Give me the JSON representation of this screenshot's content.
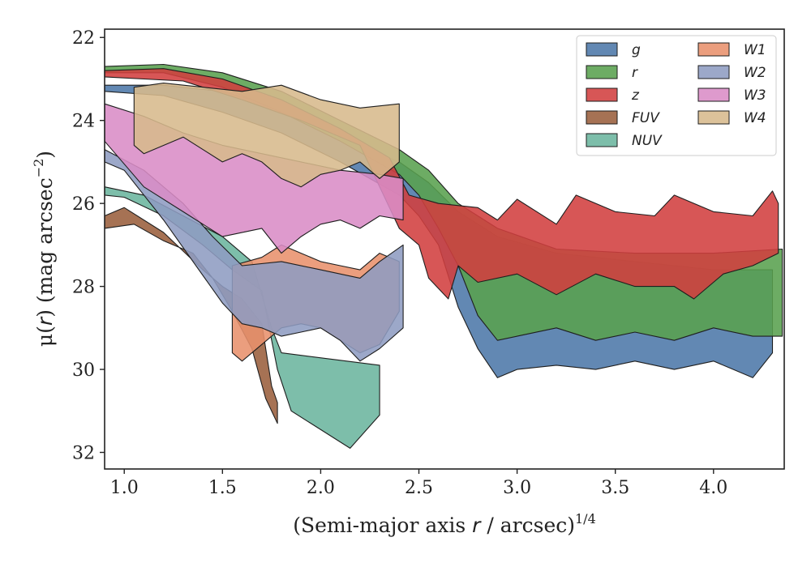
{
  "chart_data": {
    "type": "area",
    "xlabel": {
      "pre": "(Semi-major axis ",
      "var": "r",
      "post": " / arcsec)",
      "sup": "1/4"
    },
    "ylabel": {
      "pre": "μ(",
      "var": "r",
      "post": ") (mag arcsec",
      "sup": "−2",
      "end": ")"
    },
    "xlim": [
      0.9,
      4.36
    ],
    "ylim": [
      32.4,
      21.8
    ],
    "y_inverted": true,
    "xticks": [
      1.0,
      1.5,
      2.0,
      2.5,
      3.0,
      3.5,
      4.0
    ],
    "xtick_labels": [
      "1.0",
      "1.5",
      "2.0",
      "2.5",
      "3.0",
      "3.5",
      "4.0"
    ],
    "yticks": [
      22,
      24,
      26,
      28,
      30,
      32
    ],
    "ytick_labels": [
      "22",
      "24",
      "26",
      "28",
      "30",
      "32"
    ],
    "grid": false,
    "legend_position": "top-right",
    "series": [
      {
        "name": "g",
        "color": "#4c78a8",
        "upper": [
          [
            0.9,
            23.15
          ],
          [
            1.2,
            23.15
          ],
          [
            1.5,
            23.3
          ],
          [
            1.8,
            23.7
          ],
          [
            2.1,
            24.4
          ],
          [
            2.4,
            25.0
          ],
          [
            2.55,
            25.5
          ],
          [
            2.7,
            26.2
          ],
          [
            2.9,
            26.8
          ],
          [
            3.2,
            27.2
          ],
          [
            3.6,
            27.4
          ],
          [
            4.0,
            27.6
          ],
          [
            4.3,
            27.6
          ]
        ],
        "lower": [
          [
            4.3,
            29.6
          ],
          [
            4.2,
            30.2
          ],
          [
            4.0,
            29.8
          ],
          [
            3.8,
            30.0
          ],
          [
            3.6,
            29.8
          ],
          [
            3.4,
            30.0
          ],
          [
            3.2,
            29.9
          ],
          [
            3.0,
            30.0
          ],
          [
            2.9,
            30.2
          ],
          [
            2.8,
            29.5
          ],
          [
            2.7,
            28.5
          ],
          [
            2.6,
            27.0
          ],
          [
            2.5,
            26.3
          ],
          [
            2.4,
            25.8
          ],
          [
            2.1,
            25.0
          ],
          [
            1.8,
            24.3
          ],
          [
            1.5,
            23.8
          ],
          [
            1.2,
            23.4
          ],
          [
            0.9,
            23.3
          ]
        ]
      },
      {
        "name": "r",
        "color": "#59a14f",
        "upper": [
          [
            0.9,
            22.7
          ],
          [
            1.2,
            22.65
          ],
          [
            1.5,
            22.85
          ],
          [
            1.8,
            23.3
          ],
          [
            2.1,
            24.0
          ],
          [
            2.4,
            24.7
          ],
          [
            2.55,
            25.2
          ],
          [
            2.7,
            26.0
          ],
          [
            2.9,
            26.6
          ],
          [
            3.2,
            27.1
          ],
          [
            3.6,
            27.2
          ],
          [
            4.0,
            27.2
          ],
          [
            4.35,
            27.1
          ]
        ],
        "lower": [
          [
            4.35,
            29.2
          ],
          [
            4.2,
            29.2
          ],
          [
            4.0,
            29.0
          ],
          [
            3.8,
            29.3
          ],
          [
            3.6,
            29.1
          ],
          [
            3.4,
            29.3
          ],
          [
            3.2,
            29.0
          ],
          [
            3.0,
            29.2
          ],
          [
            2.9,
            29.3
          ],
          [
            2.8,
            28.7
          ],
          [
            2.7,
            27.5
          ],
          [
            2.6,
            26.6
          ],
          [
            2.5,
            25.8
          ],
          [
            2.4,
            25.3
          ],
          [
            2.1,
            24.5
          ],
          [
            1.8,
            23.8
          ],
          [
            1.5,
            23.2
          ],
          [
            1.2,
            22.85
          ],
          [
            0.9,
            22.85
          ]
        ]
      },
      {
        "name": "z",
        "color": "#d13f3f",
        "upper": [
          [
            0.9,
            22.8
          ],
          [
            1.2,
            22.75
          ],
          [
            1.5,
            23.0
          ],
          [
            1.8,
            23.5
          ],
          [
            2.1,
            24.2
          ],
          [
            2.35,
            24.9
          ],
          [
            2.45,
            25.8
          ],
          [
            2.6,
            26.0
          ],
          [
            2.8,
            26.1
          ],
          [
            2.9,
            26.4
          ],
          [
            3.0,
            25.9
          ],
          [
            3.2,
            26.5
          ],
          [
            3.3,
            25.8
          ],
          [
            3.5,
            26.2
          ],
          [
            3.7,
            26.3
          ],
          [
            3.8,
            25.8
          ],
          [
            4.0,
            26.2
          ],
          [
            4.2,
            26.3
          ],
          [
            4.3,
            25.7
          ],
          [
            4.33,
            26.0
          ]
        ],
        "lower": [
          [
            4.33,
            27.2
          ],
          [
            4.2,
            27.5
          ],
          [
            4.05,
            27.7
          ],
          [
            3.9,
            28.3
          ],
          [
            3.8,
            28.0
          ],
          [
            3.6,
            28.0
          ],
          [
            3.4,
            27.7
          ],
          [
            3.2,
            28.2
          ],
          [
            3.0,
            27.7
          ],
          [
            2.8,
            27.9
          ],
          [
            2.7,
            27.5
          ],
          [
            2.65,
            28.3
          ],
          [
            2.55,
            27.8
          ],
          [
            2.5,
            27.0
          ],
          [
            2.4,
            26.6
          ],
          [
            2.2,
            24.6
          ],
          [
            1.9,
            24.0
          ],
          [
            1.6,
            23.5
          ],
          [
            1.3,
            23.05
          ],
          [
            1.1,
            23.0
          ],
          [
            0.9,
            22.95
          ]
        ]
      },
      {
        "name": "FUV",
        "color": "#9a5e3c",
        "upper": [
          [
            0.9,
            26.3
          ],
          [
            1.0,
            26.1
          ],
          [
            1.2,
            26.7
          ],
          [
            1.4,
            27.6
          ],
          [
            1.5,
            28.0
          ],
          [
            1.6,
            28.3
          ],
          [
            1.7,
            28.9
          ],
          [
            1.75,
            30.4
          ],
          [
            1.78,
            30.8
          ]
        ],
        "lower": [
          [
            1.78,
            31.3
          ],
          [
            1.72,
            30.7
          ],
          [
            1.65,
            29.5
          ],
          [
            1.55,
            28.6
          ],
          [
            1.45,
            27.8
          ],
          [
            1.35,
            27.2
          ],
          [
            1.2,
            26.9
          ],
          [
            1.05,
            26.5
          ],
          [
            0.9,
            26.6
          ]
        ]
      },
      {
        "name": "NUV",
        "color": "#6bb59e",
        "upper": [
          [
            0.9,
            25.6
          ],
          [
            1.1,
            25.8
          ],
          [
            1.3,
            26.3
          ],
          [
            1.5,
            26.8
          ],
          [
            1.65,
            27.4
          ],
          [
            1.75,
            29.0
          ],
          [
            1.8,
            29.6
          ],
          [
            2.3,
            29.9
          ]
        ],
        "lower": [
          [
            2.3,
            31.1
          ],
          [
            2.15,
            31.9
          ],
          [
            1.85,
            31.0
          ],
          [
            1.78,
            30.0
          ],
          [
            1.7,
            28.1
          ],
          [
            1.55,
            27.6
          ],
          [
            1.4,
            27.0
          ],
          [
            1.2,
            26.3
          ],
          [
            1.0,
            25.85
          ],
          [
            0.9,
            25.8
          ]
        ]
      },
      {
        "name": "W1",
        "color": "#e8916c",
        "upper": [
          [
            1.55,
            27.5
          ],
          [
            1.7,
            27.3
          ],
          [
            1.8,
            27.0
          ],
          [
            1.9,
            27.2
          ],
          [
            2.0,
            27.4
          ],
          [
            2.1,
            27.5
          ],
          [
            2.2,
            27.6
          ],
          [
            2.3,
            27.2
          ],
          [
            2.4,
            27.4
          ]
        ],
        "lower": [
          [
            2.4,
            28.6
          ],
          [
            2.3,
            29.4
          ],
          [
            2.2,
            29.6
          ],
          [
            2.1,
            29.3
          ],
          [
            2.0,
            29.0
          ],
          [
            1.9,
            28.9
          ],
          [
            1.8,
            29.0
          ],
          [
            1.7,
            29.4
          ],
          [
            1.6,
            29.8
          ],
          [
            1.55,
            29.6
          ]
        ]
      },
      {
        "name": "W2",
        "color": "#8e9cc1",
        "upper": [
          [
            0.9,
            24.7
          ],
          [
            1.1,
            25.2
          ],
          [
            1.3,
            26.0
          ],
          [
            1.45,
            26.8
          ],
          [
            1.6,
            27.5
          ],
          [
            1.8,
            27.4
          ],
          [
            2.0,
            27.6
          ],
          [
            2.2,
            27.8
          ],
          [
            2.3,
            27.4
          ],
          [
            2.42,
            27.0
          ]
        ],
        "lower": [
          [
            2.42,
            29.0
          ],
          [
            2.3,
            29.5
          ],
          [
            2.2,
            29.8
          ],
          [
            2.1,
            29.3
          ],
          [
            2.0,
            29.0
          ],
          [
            1.9,
            29.1
          ],
          [
            1.8,
            29.2
          ],
          [
            1.7,
            29.0
          ],
          [
            1.6,
            28.9
          ],
          [
            1.5,
            28.4
          ],
          [
            1.35,
            27.4
          ],
          [
            1.2,
            26.4
          ],
          [
            1.0,
            25.2
          ],
          [
            0.9,
            25.0
          ]
        ]
      },
      {
        "name": "W3",
        "color": "#d98cc6",
        "upper": [
          [
            0.9,
            23.6
          ],
          [
            1.1,
            23.9
          ],
          [
            1.3,
            24.3
          ],
          [
            1.5,
            24.6
          ],
          [
            1.7,
            24.8
          ],
          [
            1.9,
            25.0
          ],
          [
            2.1,
            25.2
          ],
          [
            2.3,
            25.3
          ],
          [
            2.42,
            25.4
          ]
        ],
        "lower": [
          [
            2.42,
            26.4
          ],
          [
            2.3,
            26.3
          ],
          [
            2.2,
            26.6
          ],
          [
            2.1,
            26.4
          ],
          [
            2.0,
            26.5
          ],
          [
            1.9,
            26.8
          ],
          [
            1.8,
            27.2
          ],
          [
            1.7,
            26.6
          ],
          [
            1.5,
            26.8
          ],
          [
            1.3,
            26.2
          ],
          [
            1.1,
            25.6
          ],
          [
            0.9,
            24.5
          ]
        ]
      },
      {
        "name": "W4",
        "color": "#d7b98c",
        "upper": [
          [
            1.05,
            23.2
          ],
          [
            1.2,
            23.1
          ],
          [
            1.4,
            23.2
          ],
          [
            1.6,
            23.3
          ],
          [
            1.8,
            23.15
          ],
          [
            2.0,
            23.5
          ],
          [
            2.2,
            23.7
          ],
          [
            2.4,
            23.6
          ]
        ],
        "lower": [
          [
            2.4,
            25.0
          ],
          [
            2.3,
            25.4
          ],
          [
            2.2,
            25.0
          ],
          [
            2.1,
            25.2
          ],
          [
            2.0,
            25.3
          ],
          [
            1.9,
            25.6
          ],
          [
            1.8,
            25.4
          ],
          [
            1.7,
            25.0
          ],
          [
            1.6,
            24.8
          ],
          [
            1.5,
            25.0
          ],
          [
            1.3,
            24.4
          ],
          [
            1.1,
            24.8
          ],
          [
            1.05,
            24.6
          ]
        ]
      }
    ]
  }
}
